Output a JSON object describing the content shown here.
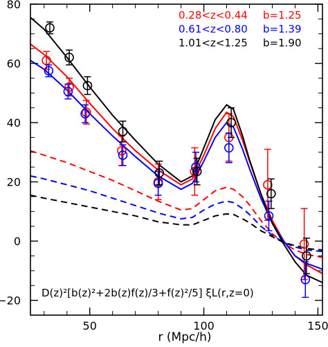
{
  "chart_data": {
    "type": "line",
    "title": "",
    "xlabel": "r (Mpc/h)",
    "ylabel": "",
    "xlim": [
      24,
      152
    ],
    "ylim": [
      -25,
      80
    ],
    "x_ticks": [
      50,
      100,
      150
    ],
    "y_ticks": [
      -20,
      0,
      20,
      40,
      60,
      80
    ],
    "grid": false,
    "legend_position": "top-right",
    "annotation": "D(z)²[b(z)²+2b(z)f(z)/3+f(z)²/5] ξL(r,z=0)",
    "legend": [
      {
        "label": "0.28<z<0.44",
        "bias": "b=1.25",
        "color": "#ff0000"
      },
      {
        "label": "0.61<z<0.80",
        "bias": "b=1.39",
        "color": "#0000ff"
      },
      {
        "label": "1.01<z<1.25",
        "bias": "b=1.90",
        "color": "#000000"
      }
    ],
    "curve_x": [
      24,
      30,
      40,
      50,
      60,
      70,
      80,
      90,
      95,
      100,
      105,
      110,
      113,
      117,
      120,
      125,
      130,
      135,
      140,
      145,
      152
    ],
    "series": [
      {
        "name": "0.28<z<0.44",
        "color": "#ff0000",
        "solid": [
          66.5,
          63,
          55.5,
          46.5,
          38,
          30.5,
          24,
          19,
          21,
          29,
          38,
          43.5,
          42,
          34,
          27,
          16,
          7,
          0,
          -5,
          -8,
          -11
        ],
        "dashed": [
          30.5,
          29,
          26.5,
          23.5,
          20.5,
          17,
          13.5,
          10.5,
          11,
          14,
          17,
          18.2,
          17.5,
          15,
          12.2,
          7,
          2.5,
          -0.8,
          -3,
          -4.5,
          -5.5
        ],
        "points": {
          "x": [
            31,
            41,
            48.5,
            64,
            80,
            96,
            111,
            128,
            144
          ],
          "y": [
            61,
            52,
            43.5,
            30.5,
            20,
            23.5,
            35,
            19,
            -1
          ],
          "err": [
            3,
            3,
            4,
            5,
            6,
            8,
            8,
            12,
            12
          ]
        }
      },
      {
        "name": "0.61<z<0.80",
        "color": "#0000ff",
        "solid": [
          61,
          58,
          51,
          43,
          35.5,
          28.5,
          22,
          17.5,
          19.5,
          27,
          35,
          40,
          38.5,
          31,
          24.5,
          14.5,
          6,
          0,
          -5,
          -7.5,
          -9.5
        ],
        "dashed": [
          22,
          21,
          19,
          17,
          14.5,
          12,
          9.5,
          7.5,
          8,
          10.5,
          12.5,
          13.5,
          13,
          11,
          9,
          5,
          2,
          -0.5,
          -2,
          -3,
          -3.5
        ],
        "points": {
          "x": [
            32,
            40.5,
            48,
            64.5,
            80,
            96.5,
            111,
            128.5,
            144.5
          ],
          "y": [
            57.5,
            50.5,
            43,
            29,
            19.5,
            25,
            31.5,
            8.5,
            -13
          ],
          "err": [
            2,
            2.5,
            3,
            3.5,
            4,
            5,
            5,
            5,
            6
          ]
        }
      },
      {
        "name": "1.01<z<1.25",
        "color": "#000000",
        "solid": [
          75.5,
          71.5,
          62,
          52,
          42.5,
          34,
          26,
          20,
          22,
          31.5,
          41,
          46,
          44.5,
          35.5,
          27.5,
          16,
          6,
          -1,
          -7,
          -11.5,
          -14
        ],
        "dashed": [
          15.5,
          14.5,
          13,
          11.5,
          10,
          8.5,
          6.5,
          5.5,
          5.5,
          7,
          8.5,
          9.2,
          9,
          7.5,
          6.2,
          3.5,
          1.5,
          -0.5,
          -1.5,
          -2.5,
          -3
        ],
        "points": {
          "x": [
            32.5,
            41,
            49,
            64.5,
            80.5,
            97,
            112,
            129.5,
            145
          ],
          "y": [
            72,
            62,
            52.5,
            37,
            23,
            23.5,
            40,
            16,
            -5
          ],
          "err": [
            2,
            2.5,
            3,
            3.5,
            4,
            4.5,
            5,
            5,
            6
          ]
        }
      }
    ]
  }
}
